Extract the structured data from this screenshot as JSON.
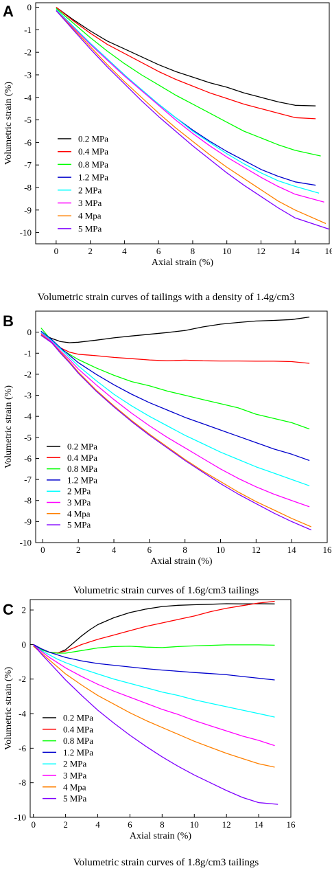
{
  "chart_data": [
    {
      "panel": "A",
      "type": "line",
      "caption": "Volumetric strain curves of tailings with a density of 1.4g/cm3",
      "xlabel": "Axial strain (%)",
      "ylabel": "Volumetric strain (%)",
      "xlim": [
        -1.2,
        16
      ],
      "ylim": [
        -10.5,
        0.2
      ],
      "xticks": [
        0,
        2,
        4,
        6,
        8,
        10,
        12,
        14,
        16
      ],
      "yticks": [
        0,
        -1,
        -2,
        -3,
        -4,
        -5,
        -6,
        -7,
        -8,
        -9,
        -10
      ],
      "legend_position": "center-left",
      "series": [
        {
          "name": "0.2 MPa",
          "color": "#000000",
          "x": [
            0,
            1,
            2,
            3,
            4,
            5,
            6,
            7,
            8,
            9,
            10,
            11,
            12,
            13,
            14,
            15.2
          ],
          "y": [
            0,
            -0.55,
            -1.05,
            -1.5,
            -1.85,
            -2.2,
            -2.55,
            -2.85,
            -3.1,
            -3.35,
            -3.55,
            -3.8,
            -4.0,
            -4.2,
            -4.35,
            -4.38
          ]
        },
        {
          "name": "0.4 MPa",
          "color": "#ff0000",
          "x": [
            0,
            1,
            2,
            3,
            4,
            5,
            6,
            7,
            8,
            9,
            10,
            11,
            12,
            13,
            14,
            15.2
          ],
          "y": [
            0,
            -0.6,
            -1.15,
            -1.65,
            -2.05,
            -2.45,
            -2.85,
            -3.2,
            -3.5,
            -3.8,
            -4.05,
            -4.3,
            -4.5,
            -4.7,
            -4.9,
            -4.95
          ]
        },
        {
          "name": "0.8 MPa",
          "color": "#00ff00",
          "x": [
            0,
            1,
            2,
            3,
            4,
            5,
            6,
            7,
            8,
            9,
            10,
            11,
            12,
            13,
            14,
            15.5
          ],
          "y": [
            -0.05,
            -0.7,
            -1.35,
            -1.95,
            -2.5,
            -3.0,
            -3.45,
            -3.9,
            -4.3,
            -4.7,
            -5.1,
            -5.5,
            -5.8,
            -6.1,
            -6.35,
            -6.6
          ]
        },
        {
          "name": "1.2 MPa",
          "color": "#0000cc",
          "x": [
            0,
            1,
            2,
            3,
            4,
            5,
            6,
            7,
            8,
            9,
            10,
            11,
            12,
            13,
            14,
            15.2
          ],
          "y": [
            -0.1,
            -0.85,
            -1.6,
            -2.3,
            -3.0,
            -3.7,
            -4.3,
            -4.9,
            -5.45,
            -5.95,
            -6.4,
            -6.8,
            -7.2,
            -7.5,
            -7.75,
            -7.9
          ]
        },
        {
          "name": "2 MPa",
          "color": "#00ffff",
          "x": [
            0,
            1,
            2,
            3,
            4,
            5,
            6,
            7,
            8,
            9,
            10,
            11,
            12,
            13,
            14,
            15.4
          ],
          "y": [
            -0.1,
            -0.85,
            -1.6,
            -2.3,
            -3.0,
            -3.65,
            -4.3,
            -4.9,
            -5.5,
            -6.0,
            -6.5,
            -6.95,
            -7.35,
            -7.7,
            -7.95,
            -8.25
          ]
        },
        {
          "name": "3 MPa",
          "color": "#ff00ff",
          "x": [
            0,
            1,
            2,
            3,
            4,
            5,
            6,
            7,
            8,
            9,
            10,
            11,
            12,
            13,
            14,
            15.7
          ],
          "y": [
            -0.15,
            -0.9,
            -1.65,
            -2.35,
            -3.05,
            -3.7,
            -4.35,
            -5.0,
            -5.6,
            -6.15,
            -6.65,
            -7.1,
            -7.55,
            -7.95,
            -8.3,
            -8.65
          ]
        },
        {
          "name": "4 Mpa",
          "color": "#ff8000",
          "x": [
            0,
            1,
            2,
            3,
            4,
            5,
            6,
            7,
            8,
            9,
            10,
            11,
            12,
            13,
            14,
            15.8
          ],
          "y": [
            -0.15,
            -0.95,
            -1.75,
            -2.55,
            -3.3,
            -4.0,
            -4.7,
            -5.35,
            -5.95,
            -6.55,
            -7.1,
            -7.6,
            -8.1,
            -8.6,
            -9.0,
            -9.6
          ]
        },
        {
          "name": "5 MPa",
          "color": "#8000ff",
          "x": [
            0,
            1,
            2,
            3,
            4,
            5,
            6,
            7,
            8,
            9,
            10,
            11,
            12,
            13,
            14,
            16
          ],
          "y": [
            -0.15,
            -1.0,
            -1.85,
            -2.65,
            -3.4,
            -4.15,
            -4.85,
            -5.5,
            -6.15,
            -6.75,
            -7.35,
            -7.9,
            -8.4,
            -8.9,
            -9.35,
            -9.85
          ]
        }
      ]
    },
    {
      "panel": "B",
      "type": "line",
      "caption": "Volumetric strain curves of 1.6g/cm3 tailings",
      "xlabel": "Axial strain (%)",
      "ylabel": "Volumetric strain (%)",
      "xlim": [
        -0.4,
        16
      ],
      "ylim": [
        -10,
        1
      ],
      "xticks": [
        0,
        2,
        4,
        6,
        8,
        10,
        12,
        14,
        16
      ],
      "yticks": [
        0,
        -1,
        -2,
        -3,
        -4,
        -5,
        -6,
        -7,
        -8,
        -9,
        -10
      ],
      "legend_position": "bottom-left",
      "series": [
        {
          "name": "0.2 MPa",
          "color": "#000000",
          "x": [
            0,
            0.5,
            1,
            1.5,
            2,
            3,
            4,
            5,
            6,
            7,
            8,
            9,
            10,
            11,
            12,
            13,
            14,
            15
          ],
          "y": [
            -0.1,
            -0.3,
            -0.45,
            -0.5,
            -0.48,
            -0.38,
            -0.27,
            -0.18,
            -0.1,
            -0.02,
            0.08,
            0.25,
            0.38,
            0.46,
            0.53,
            0.56,
            0.6,
            0.72
          ]
        },
        {
          "name": "0.4 MPa",
          "color": "#ff0000",
          "x": [
            0,
            0.5,
            1,
            1.5,
            2,
            3,
            4,
            5,
            6,
            7,
            8,
            9,
            10,
            11,
            12,
            13,
            14,
            15
          ],
          "y": [
            -0.15,
            -0.45,
            -0.75,
            -0.95,
            -1.05,
            -1.12,
            -1.2,
            -1.26,
            -1.32,
            -1.36,
            -1.33,
            -1.36,
            -1.37,
            -1.37,
            -1.38,
            -1.38,
            -1.4,
            -1.48
          ]
        },
        {
          "name": "0.8 MPa",
          "color": "#00ff00",
          "x": [
            -0.1,
            0.5,
            1,
            1.5,
            2,
            3,
            4,
            5,
            6,
            7,
            8,
            9,
            10,
            11,
            12,
            13,
            14,
            15
          ],
          "y": [
            0.2,
            -0.4,
            -0.8,
            -1.05,
            -1.3,
            -1.7,
            -2.05,
            -2.35,
            -2.55,
            -2.8,
            -3.0,
            -3.2,
            -3.4,
            -3.6,
            -3.9,
            -4.1,
            -4.3,
            -4.6
          ]
        },
        {
          "name": "1.2 MPa",
          "color": "#0000cc",
          "x": [
            -0.1,
            0.5,
            1,
            1.5,
            2,
            3,
            4,
            5,
            6,
            7,
            8,
            9,
            10,
            11,
            12,
            13,
            14,
            15
          ],
          "y": [
            0.05,
            -0.35,
            -0.75,
            -1.1,
            -1.45,
            -2.0,
            -2.5,
            -2.95,
            -3.35,
            -3.7,
            -4.05,
            -4.35,
            -4.65,
            -4.95,
            -5.25,
            -5.55,
            -5.8,
            -6.1
          ]
        },
        {
          "name": "2 MPa",
          "color": "#00ffff",
          "x": [
            -0.1,
            0.5,
            1,
            1.5,
            2,
            3,
            4,
            5,
            6,
            7,
            8,
            9,
            10,
            11,
            12,
            13,
            14,
            15
          ],
          "y": [
            0,
            -0.4,
            -0.8,
            -1.2,
            -1.6,
            -2.3,
            -2.95,
            -3.5,
            -4.0,
            -4.45,
            -4.9,
            -5.3,
            -5.7,
            -6.05,
            -6.4,
            -6.7,
            -7.0,
            -7.3
          ]
        },
        {
          "name": "3 MPa",
          "color": "#ff00ff",
          "x": [
            -0.1,
            0.5,
            1,
            1.5,
            2,
            3,
            4,
            5,
            6,
            7,
            8,
            9,
            10,
            11,
            12,
            13,
            14,
            15
          ],
          "y": [
            -0.05,
            -0.45,
            -0.9,
            -1.3,
            -1.75,
            -2.5,
            -3.2,
            -3.85,
            -4.45,
            -5.0,
            -5.5,
            -6.0,
            -6.5,
            -6.95,
            -7.35,
            -7.7,
            -8.0,
            -8.3
          ]
        },
        {
          "name": "4 Mpa",
          "color": "#ff8000",
          "x": [
            -0.1,
            0.5,
            1,
            1.5,
            2,
            3,
            4,
            5,
            6,
            7,
            8,
            9,
            10,
            11,
            12,
            13,
            14,
            15.1
          ],
          "y": [
            -0.1,
            -0.5,
            -0.95,
            -1.4,
            -1.9,
            -2.75,
            -3.5,
            -4.2,
            -4.85,
            -5.45,
            -6.05,
            -6.6,
            -7.1,
            -7.6,
            -8.05,
            -8.45,
            -8.85,
            -9.25
          ]
        },
        {
          "name": "5 MPa",
          "color": "#8000ff",
          "x": [
            -0.1,
            0.5,
            1,
            1.5,
            2,
            3,
            4,
            5,
            6,
            7,
            8,
            9,
            10,
            11,
            12,
            13,
            14,
            15.1
          ],
          "y": [
            -0.15,
            -0.5,
            -1.0,
            -1.45,
            -1.95,
            -2.8,
            -3.55,
            -4.25,
            -4.9,
            -5.5,
            -6.1,
            -6.65,
            -7.2,
            -7.7,
            -8.15,
            -8.6,
            -9.0,
            -9.4
          ]
        }
      ]
    },
    {
      "panel": "C",
      "type": "line",
      "caption": "Volumetric strain curves of 1.8g/cm3 tailings",
      "xlabel": "Axial strain (%)",
      "ylabel": "Volumetric strain (%)",
      "xlim": [
        -0.2,
        16
      ],
      "ylim": [
        -10,
        2.6
      ],
      "xticks": [
        0,
        2,
        4,
        6,
        8,
        10,
        12,
        14,
        16
      ],
      "yticks": [
        2,
        0,
        -2,
        -4,
        -6,
        -8,
        -10
      ],
      "legend_position": "bottom-left",
      "series": [
        {
          "name": "0.2 MPa",
          "color": "#000000",
          "x": [
            0,
            0.5,
            1,
            1.5,
            2,
            2.5,
            3,
            3.5,
            4,
            5,
            6,
            7,
            8,
            9,
            10,
            11,
            12,
            13,
            14,
            15
          ],
          "y": [
            0,
            -0.25,
            -0.45,
            -0.5,
            -0.3,
            0.1,
            0.5,
            0.85,
            1.15,
            1.55,
            1.85,
            2.05,
            2.2,
            2.27,
            2.3,
            2.33,
            2.36,
            2.35,
            2.36,
            2.35
          ]
        },
        {
          "name": "0.4 MPa",
          "color": "#ff0000",
          "x": [
            0,
            0.5,
            1,
            1.5,
            2,
            2.5,
            3,
            4,
            5,
            6,
            7,
            8,
            9,
            10,
            11,
            12,
            13,
            14,
            15
          ],
          "y": [
            -0.05,
            -0.3,
            -0.45,
            -0.48,
            -0.38,
            -0.2,
            0,
            0.3,
            0.55,
            0.8,
            1.05,
            1.25,
            1.45,
            1.65,
            1.9,
            2.1,
            2.25,
            2.4,
            2.5
          ]
        },
        {
          "name": "0.8 MPa",
          "color": "#00ff00",
          "x": [
            0,
            0.5,
            1,
            1.5,
            2,
            3,
            4,
            5,
            6,
            7,
            8,
            9,
            10,
            11,
            12,
            13,
            14,
            15
          ],
          "y": [
            -0.1,
            -0.3,
            -0.45,
            -0.5,
            -0.5,
            -0.35,
            -0.2,
            -0.12,
            -0.1,
            -0.15,
            -0.18,
            -0.12,
            -0.08,
            -0.05,
            -0.02,
            -0.02,
            -0.02,
            -0.04
          ]
        },
        {
          "name": "1.2 MPa",
          "color": "#0000cc",
          "x": [
            0,
            0.5,
            1,
            1.5,
            2,
            3,
            4,
            5,
            6,
            7,
            8,
            9,
            10,
            11,
            12,
            13,
            14,
            15
          ],
          "y": [
            0,
            -0.25,
            -0.45,
            -0.6,
            -0.75,
            -0.95,
            -1.1,
            -1.2,
            -1.3,
            -1.4,
            -1.48,
            -1.55,
            -1.62,
            -1.68,
            -1.75,
            -1.85,
            -1.95,
            -2.05
          ]
        },
        {
          "name": "2 MPa",
          "color": "#00ffff",
          "x": [
            0,
            0.5,
            1,
            1.5,
            2,
            3,
            4,
            5,
            6,
            7,
            8,
            9,
            10,
            11,
            12,
            13,
            14,
            15
          ],
          "y": [
            -0.05,
            -0.35,
            -0.6,
            -0.85,
            -1.05,
            -1.4,
            -1.7,
            -2.0,
            -2.25,
            -2.5,
            -2.75,
            -2.95,
            -3.2,
            -3.4,
            -3.6,
            -3.8,
            -4.0,
            -4.2
          ]
        },
        {
          "name": "3 MPa",
          "color": "#ff00ff",
          "x": [
            0,
            0.5,
            1,
            1.5,
            2,
            3,
            4,
            5,
            6,
            7,
            8,
            9,
            10,
            11,
            12,
            13,
            14,
            15
          ],
          "y": [
            -0.05,
            -0.4,
            -0.75,
            -1.05,
            -1.35,
            -1.85,
            -2.3,
            -2.7,
            -3.05,
            -3.4,
            -3.75,
            -4.05,
            -4.4,
            -4.7,
            -5.0,
            -5.3,
            -5.55,
            -5.85
          ]
        },
        {
          "name": "4 Mpa",
          "color": "#ff8000",
          "x": [
            0,
            0.5,
            1,
            1.5,
            2,
            3,
            4,
            5,
            6,
            7,
            8,
            9,
            10,
            11,
            12,
            13,
            14,
            15
          ],
          "y": [
            -0.1,
            -0.5,
            -0.9,
            -1.3,
            -1.7,
            -2.35,
            -2.95,
            -3.45,
            -3.95,
            -4.4,
            -4.8,
            -5.2,
            -5.6,
            -5.95,
            -6.3,
            -6.6,
            -6.9,
            -7.1
          ]
        },
        {
          "name": "5 MPa",
          "color": "#8000ff",
          "x": [
            0,
            0.5,
            1,
            1.5,
            2,
            3,
            4,
            5,
            6,
            7,
            8,
            9,
            10,
            11,
            12,
            13,
            14,
            15.2
          ],
          "y": [
            0,
            -0.55,
            -1.05,
            -1.55,
            -2.05,
            -2.95,
            -3.8,
            -4.55,
            -5.25,
            -5.9,
            -6.5,
            -7.05,
            -7.55,
            -8.0,
            -8.45,
            -8.85,
            -9.15,
            -9.25
          ]
        }
      ]
    }
  ]
}
